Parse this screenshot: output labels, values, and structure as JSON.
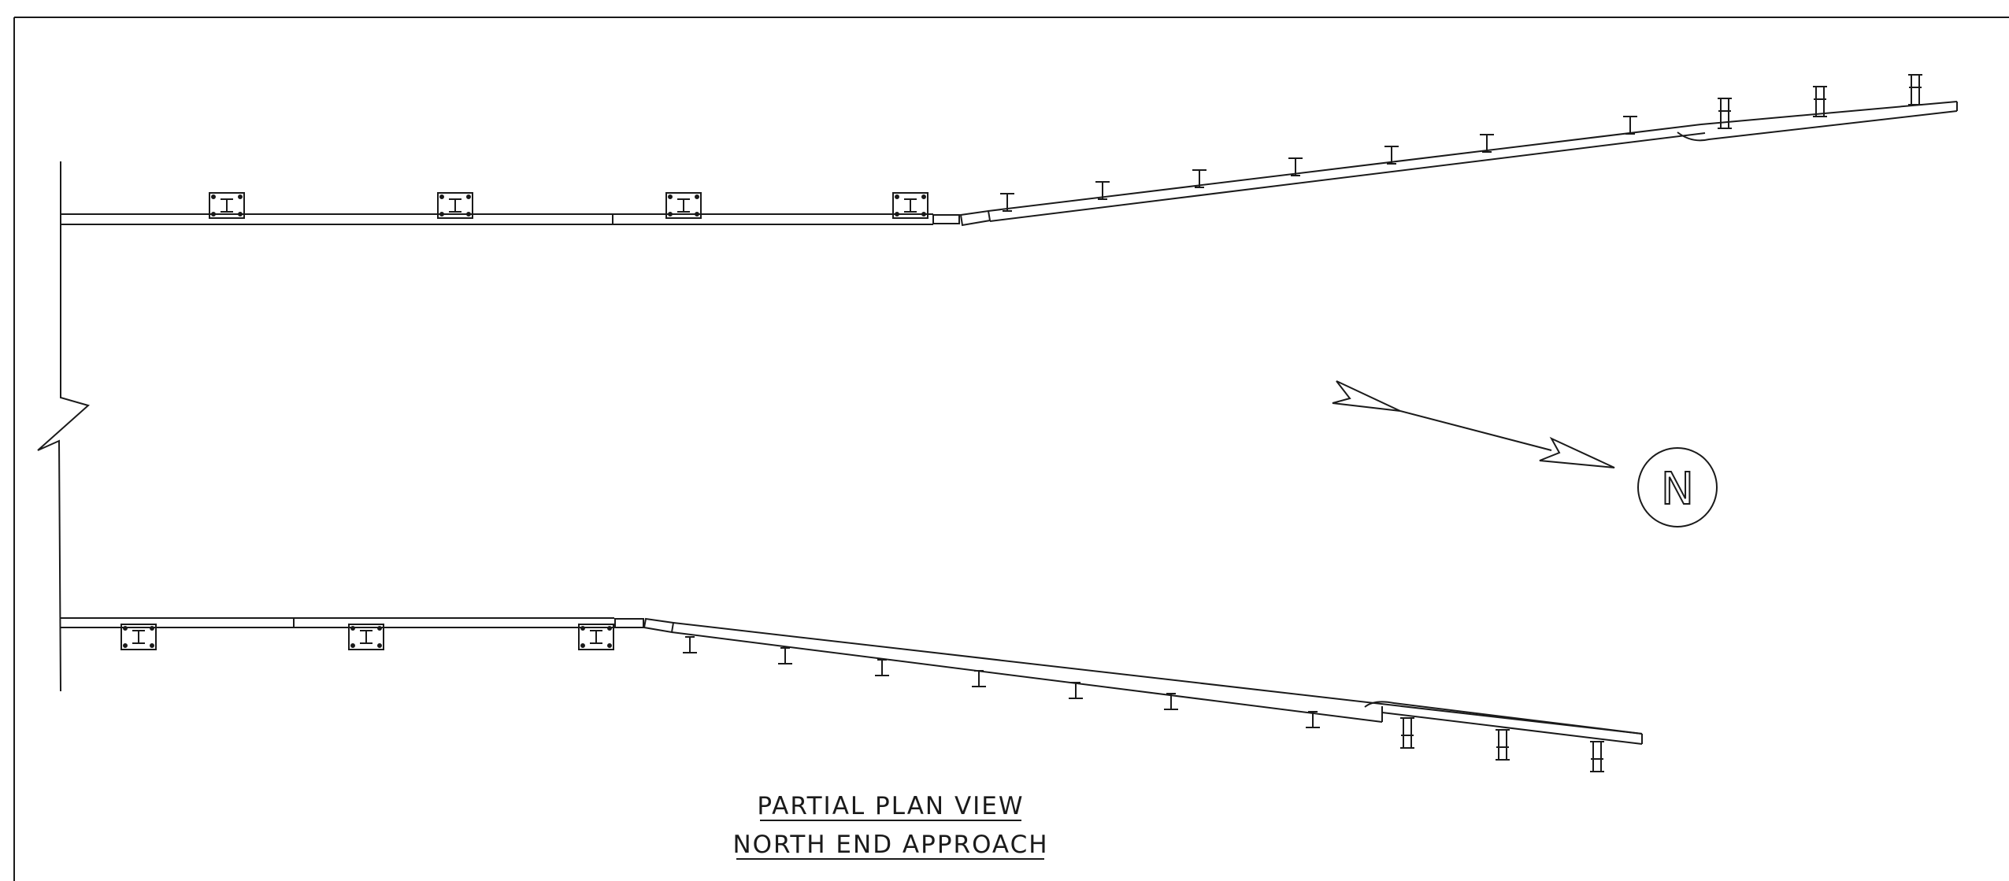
{
  "drawing": {
    "title_line1": "PARTIAL PLAN VIEW",
    "title_line2": "NORTH END APPROACH",
    "north_label": "N",
    "line_color": "#1a1a1a"
  },
  "icons": {
    "north_arrow": "north-arrow-icon",
    "break_line": "break-line-icon",
    "post": "guardrail-post-icon",
    "base_plate": "base-plate-icon"
  }
}
